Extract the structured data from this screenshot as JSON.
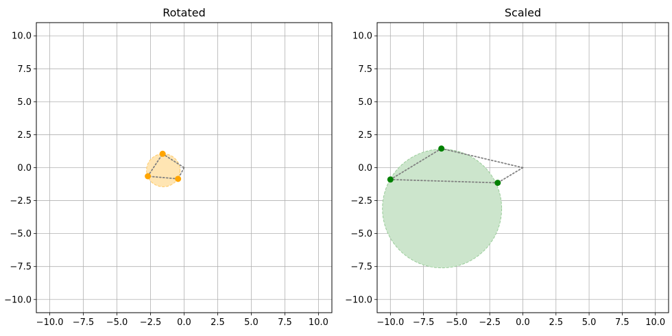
{
  "chart_data": [
    {
      "type": "scatter",
      "title": "Rotated",
      "xlabel": "",
      "ylabel": "",
      "xlim": [
        -11,
        11
      ],
      "ylim": [
        -11,
        11
      ],
      "xticks": [
        "−10.0",
        "−7.5",
        "−5.0",
        "−2.5",
        "0.0",
        "2.5",
        "5.0",
        "7.5",
        "10.0"
      ],
      "yticks": [
        "−10.0",
        "−7.5",
        "−5.0",
        "−2.5",
        "0.0",
        "2.5",
        "5.0",
        "7.5",
        "10.0"
      ],
      "grid": true,
      "points": [
        {
          "x": -1.6,
          "y": 1.05
        },
        {
          "x": -2.7,
          "y": -0.65
        },
        {
          "x": -0.45,
          "y": -0.85
        }
      ],
      "origin": {
        "x": 0,
        "y": 0
      },
      "circle": {
        "cx": -1.55,
        "cy": -0.2,
        "r": 1.25
      },
      "point_color": "#ffa500",
      "circle_fill": "#ffe5b3",
      "circle_edge": "#ffc966",
      "line_color": "#808080"
    },
    {
      "type": "scatter",
      "title": "Scaled",
      "xlabel": "",
      "ylabel": "",
      "xlim": [
        -11,
        11
      ],
      "ylim": [
        -11,
        11
      ],
      "xticks": [
        "−10.0",
        "−7.5",
        "−5.0",
        "−2.5",
        "0.0",
        "2.5",
        "5.0",
        "7.5",
        "10.0"
      ],
      "yticks": [
        "−10.0",
        "−7.5",
        "−5.0",
        "−2.5",
        "0.0",
        "2.5",
        "5.0",
        "7.5",
        "10.0"
      ],
      "grid": true,
      "points": [
        {
          "x": -6.15,
          "y": 1.45
        },
        {
          "x": -10.0,
          "y": -0.9
        },
        {
          "x": -1.9,
          "y": -1.15
        }
      ],
      "origin": {
        "x": 0,
        "y": 0
      },
      "circle": {
        "cx": -6.1,
        "cy": -3.1,
        "r": 4.5
      },
      "point_color": "#008000",
      "circle_fill": "#cce5cc",
      "circle_edge": "#99cc99",
      "line_color": "#808080"
    }
  ]
}
